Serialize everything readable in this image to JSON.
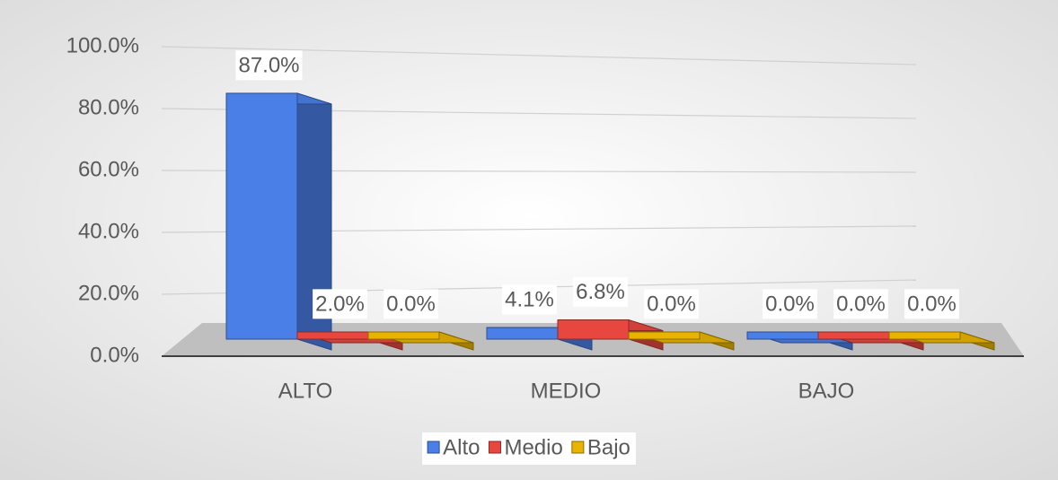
{
  "chart_data": {
    "type": "bar3d",
    "categories": [
      "ALTO",
      "MEDIO",
      "BAJO"
    ],
    "series": [
      {
        "name": "Alto",
        "color": "#4a7fe8",
        "values": [
          87.0,
          4.1,
          0.0
        ],
        "value_labels": [
          "87.0%",
          "4.1%",
          "0.0%"
        ]
      },
      {
        "name": "Medio",
        "color": "#e8473f",
        "values": [
          2.0,
          6.8,
          0.0
        ],
        "value_labels": [
          "2.0%",
          "6.8%",
          "0.0%"
        ]
      },
      {
        "name": "Bajo",
        "color": "#e8b400",
        "values": [
          0.0,
          0.0,
          0.0
        ],
        "value_labels": [
          "0.0%",
          "0.0%",
          "0.0%"
        ]
      }
    ],
    "ylim": [
      0,
      100
    ],
    "yticks": [
      {
        "value": 0,
        "label": "0.0%"
      },
      {
        "value": 20,
        "label": "20.0%"
      },
      {
        "value": 40,
        "label": "40.0%"
      },
      {
        "value": 60,
        "label": "60.0%"
      },
      {
        "value": 80,
        "label": "80.0%"
      },
      {
        "value": 100,
        "label": "100.0%"
      }
    ],
    "grid": true,
    "legend": "bottom"
  }
}
